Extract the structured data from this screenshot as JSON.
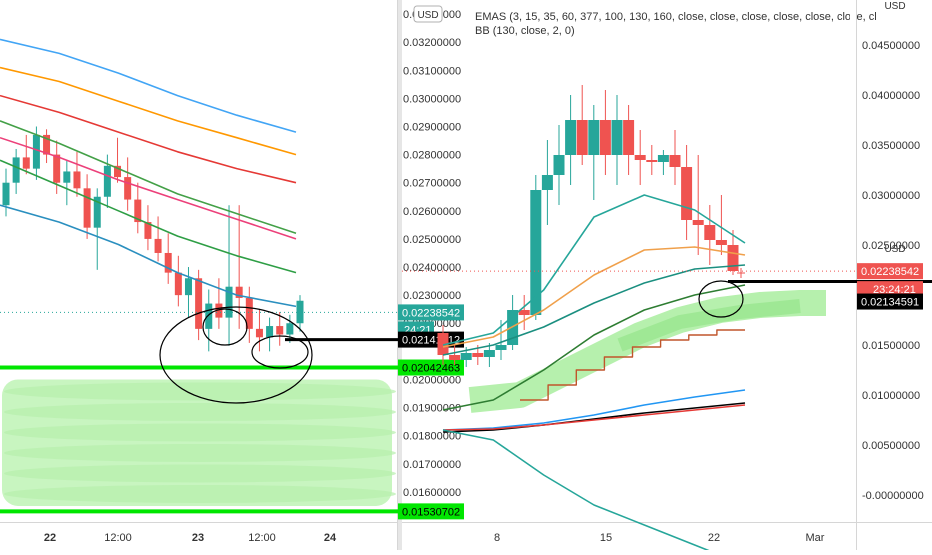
{
  "left_panel": {
    "currency": "USD",
    "price_ticks": [
      "0.03300000",
      "0.03200000",
      "0.03100000",
      "0.03000000",
      "0.02900000",
      "0.02800000",
      "0.02700000",
      "0.02600000",
      "0.02500000",
      "0.02400000",
      "0.02300000",
      "0.02200000",
      "0.02000000",
      "0.01900000",
      "0.01800000",
      "0.01700000",
      "0.01600000"
    ],
    "x_ticks": [
      "22",
      "12:00",
      "23",
      "12:00",
      "24"
    ],
    "labels": {
      "last_price": "0.02238542",
      "countdown": "24:21",
      "line_level": "0.02141812",
      "support_top": "0.02042463",
      "support_bottom": "0.01530702"
    },
    "colors": {
      "candle_up": "#26a69a",
      "candle_down": "#ef5350",
      "support": "#00e600",
      "annotation": "#000000"
    }
  },
  "right_panel": {
    "currency": "USD",
    "legend_line1": "EMAS (3, 15, 35, 60, 377, 100, 130, 160, close, close, close, close, close, close, cl",
    "legend_line2": "BB (130, close, 2, 0)",
    "price_ticks": [
      "0.04500000",
      "0.04000000",
      "0.03500000",
      "0.03000000",
      "0.02500000",
      "0.01500000",
      "0.01000000",
      "0.00500000",
      "-0.00000000"
    ],
    "x_ticks": [
      "8",
      "15",
      "22",
      "Mar"
    ],
    "labels": {
      "last_price": "0.02238542",
      "countdown": "23:24:21",
      "line_level": "0.02134591"
    }
  },
  "chart_data": [
    {
      "type": "candlestick",
      "timeframe": "intraday, 22 to 24",
      "ylim": [
        0.015,
        0.0335
      ],
      "highlighted_levels": [
        0.02042463,
        0.01530702
      ],
      "horizontal_line": 0.02141812,
      "last_price": 0.02238542,
      "candles": [
        {
          "o": 0.0262,
          "h": 0.0275,
          "l": 0.0258,
          "c": 0.027
        },
        {
          "o": 0.027,
          "h": 0.0282,
          "l": 0.0266,
          "c": 0.0279
        },
        {
          "o": 0.0279,
          "h": 0.0287,
          "l": 0.0273,
          "c": 0.0275
        },
        {
          "o": 0.0275,
          "h": 0.029,
          "l": 0.0271,
          "c": 0.0287
        },
        {
          "o": 0.0287,
          "h": 0.0289,
          "l": 0.0277,
          "c": 0.028
        },
        {
          "o": 0.028,
          "h": 0.0285,
          "l": 0.0266,
          "c": 0.027
        },
        {
          "o": 0.027,
          "h": 0.0278,
          "l": 0.0262,
          "c": 0.0274
        },
        {
          "o": 0.0274,
          "h": 0.0281,
          "l": 0.0265,
          "c": 0.0268
        },
        {
          "o": 0.0268,
          "h": 0.0273,
          "l": 0.025,
          "c": 0.0254
        },
        {
          "o": 0.0254,
          "h": 0.0268,
          "l": 0.0239,
          "c": 0.0265
        },
        {
          "o": 0.0265,
          "h": 0.028,
          "l": 0.0261,
          "c": 0.0276
        },
        {
          "o": 0.0276,
          "h": 0.0286,
          "l": 0.027,
          "c": 0.0272
        },
        {
          "o": 0.0272,
          "h": 0.0279,
          "l": 0.026,
          "c": 0.0264
        },
        {
          "o": 0.0264,
          "h": 0.027,
          "l": 0.0252,
          "c": 0.0256
        },
        {
          "o": 0.0256,
          "h": 0.0262,
          "l": 0.0246,
          "c": 0.025
        },
        {
          "o": 0.025,
          "h": 0.0258,
          "l": 0.0242,
          "c": 0.0245
        },
        {
          "o": 0.0245,
          "h": 0.0252,
          "l": 0.0234,
          "c": 0.0238
        },
        {
          "o": 0.0238,
          "h": 0.0244,
          "l": 0.0226,
          "c": 0.023
        },
        {
          "o": 0.023,
          "h": 0.024,
          "l": 0.0222,
          "c": 0.0236
        },
        {
          "o": 0.0236,
          "h": 0.0239,
          "l": 0.0214,
          "c": 0.0218
        },
        {
          "o": 0.0218,
          "h": 0.0232,
          "l": 0.021,
          "c": 0.0227
        },
        {
          "o": 0.0227,
          "h": 0.0236,
          "l": 0.0218,
          "c": 0.0222
        },
        {
          "o": 0.0222,
          "h": 0.0262,
          "l": 0.0212,
          "c": 0.0233
        },
        {
          "o": 0.0233,
          "h": 0.0262,
          "l": 0.0218,
          "c": 0.0229
        },
        {
          "o": 0.0229,
          "h": 0.0233,
          "l": 0.0213,
          "c": 0.0218
        },
        {
          "o": 0.0218,
          "h": 0.0225,
          "l": 0.021,
          "c": 0.0215
        },
        {
          "o": 0.0215,
          "h": 0.0222,
          "l": 0.021,
          "c": 0.0219
        },
        {
          "o": 0.0219,
          "h": 0.0224,
          "l": 0.0212,
          "c": 0.0216
        },
        {
          "o": 0.0216,
          "h": 0.0223,
          "l": 0.0213,
          "c": 0.022
        },
        {
          "o": 0.022,
          "h": 0.023,
          "l": 0.0217,
          "c": 0.0228
        }
      ],
      "ema_lines": [
        {
          "color": "#42a5f5",
          "points": [
            0.0321,
            0.0316,
            0.0309,
            0.0301,
            0.0294,
            0.0288
          ]
        },
        {
          "color": "#ff9800",
          "points": [
            0.0311,
            0.0306,
            0.0299,
            0.0292,
            0.0286,
            0.028
          ]
        },
        {
          "color": "#e53935",
          "points": [
            0.0301,
            0.0295,
            0.0288,
            0.0281,
            0.0275,
            0.027
          ]
        },
        {
          "color": "#43a047",
          "points": [
            0.0292,
            0.0284,
            0.0275,
            0.0266,
            0.0259,
            0.0252
          ]
        },
        {
          "color": "#ec407a",
          "points": [
            0.0286,
            0.0279,
            0.0271,
            0.0264,
            0.0257,
            0.025
          ]
        },
        {
          "color": "#2e9e45",
          "points": [
            0.0278,
            0.0269,
            0.026,
            0.0251,
            0.0244,
            0.0238
          ]
        },
        {
          "color": "#2a8fbf",
          "points": [
            0.0262,
            0.0256,
            0.0248,
            0.0238,
            0.023,
            0.0226
          ]
        }
      ]
    },
    {
      "type": "candlestick",
      "timeframe": "daily, 8 to Mar",
      "indicators": [
        "EMAS (3, 15, 35, 60, 377, 100, 130, 160)",
        "BB (130, close, 2, 0)"
      ],
      "ylim": [
        -0.0025,
        0.0495
      ],
      "horizontal_line": 0.02134591,
      "last_price": 0.02238542,
      "candles": [
        {
          "o": 0.0162,
          "h": 0.017,
          "l": 0.013,
          "c": 0.014
        },
        {
          "o": 0.014,
          "h": 0.015,
          "l": 0.013,
          "c": 0.0135
        },
        {
          "o": 0.0135,
          "h": 0.0148,
          "l": 0.0128,
          "c": 0.0142
        },
        {
          "o": 0.0142,
          "h": 0.015,
          "l": 0.013,
          "c": 0.0138
        },
        {
          "o": 0.0138,
          "h": 0.0152,
          "l": 0.0128,
          "c": 0.0145
        },
        {
          "o": 0.0145,
          "h": 0.0175,
          "l": 0.0135,
          "c": 0.015
        },
        {
          "o": 0.015,
          "h": 0.02,
          "l": 0.0145,
          "c": 0.0185
        },
        {
          "o": 0.0185,
          "h": 0.02,
          "l": 0.0165,
          "c": 0.018
        },
        {
          "o": 0.018,
          "h": 0.032,
          "l": 0.0175,
          "c": 0.0305
        },
        {
          "o": 0.0305,
          "h": 0.0355,
          "l": 0.027,
          "c": 0.032
        },
        {
          "o": 0.032,
          "h": 0.037,
          "l": 0.029,
          "c": 0.034
        },
        {
          "o": 0.034,
          "h": 0.04,
          "l": 0.031,
          "c": 0.0375
        },
        {
          "o": 0.0375,
          "h": 0.041,
          "l": 0.033,
          "c": 0.034
        },
        {
          "o": 0.034,
          "h": 0.039,
          "l": 0.0295,
          "c": 0.0375
        },
        {
          "o": 0.0375,
          "h": 0.0405,
          "l": 0.032,
          "c": 0.034
        },
        {
          "o": 0.034,
          "h": 0.04,
          "l": 0.031,
          "c": 0.0375
        },
        {
          "o": 0.0375,
          "h": 0.039,
          "l": 0.032,
          "c": 0.034
        },
        {
          "o": 0.034,
          "h": 0.0365,
          "l": 0.031,
          "c": 0.0335
        },
        {
          "o": 0.0335,
          "h": 0.035,
          "l": 0.032,
          "c": 0.0333
        },
        {
          "o": 0.0333,
          "h": 0.0345,
          "l": 0.032,
          "c": 0.034
        },
        {
          "o": 0.034,
          "h": 0.0365,
          "l": 0.031,
          "c": 0.0328
        },
        {
          "o": 0.0328,
          "h": 0.035,
          "l": 0.0255,
          "c": 0.0275
        },
        {
          "o": 0.0275,
          "h": 0.034,
          "l": 0.024,
          "c": 0.027
        },
        {
          "o": 0.027,
          "h": 0.029,
          "l": 0.023,
          "c": 0.0255
        },
        {
          "o": 0.0255,
          "h": 0.03,
          "l": 0.024,
          "c": 0.025
        },
        {
          "o": 0.025,
          "h": 0.0265,
          "l": 0.022,
          "c": 0.0224
        }
      ],
      "ema_lines": [
        {
          "color": "#26a69a",
          "points": [
            0.015,
            0.0162,
            0.0205,
            0.0278,
            0.03,
            0.0285,
            0.0252
          ]
        },
        {
          "color": "#f0a04b",
          "points": [
            0.0148,
            0.0158,
            0.0185,
            0.022,
            0.0245,
            0.0248,
            0.024
          ]
        },
        {
          "color": "#1b8f80",
          "points": [
            0.014,
            0.015,
            0.0168,
            0.0192,
            0.0212,
            0.0226,
            0.023
          ]
        },
        {
          "color": "#2e7d32",
          "points": [
            0.0085,
            0.0095,
            0.0125,
            0.016,
            0.0185,
            0.02,
            0.021
          ]
        },
        {
          "color": "#2196f3",
          "points": [
            0.0065,
            0.0067,
            0.0072,
            0.008,
            0.009,
            0.0098,
            0.0105
          ]
        },
        {
          "color": "#000000",
          "points": [
            0.0063,
            0.0065,
            0.007,
            0.0076,
            0.0082,
            0.0087,
            0.0092
          ]
        },
        {
          "color": "#e53935",
          "points": [
            0.0065,
            0.0066,
            0.007,
            0.0075,
            0.008,
            0.0085,
            0.009
          ]
        },
        {
          "color": "#26a69a",
          "points": [
            0.0065,
            0.0055,
            0.002,
            -0.001,
            -0.003,
            -0.005,
            -0.007
          ]
        }
      ],
      "stepped_line": {
        "color": "#c0552b",
        "points": [
          0.0095,
          0.011,
          0.0125,
          0.0138,
          0.0148,
          0.0155,
          0.016,
          0.0165
        ]
      }
    }
  ]
}
